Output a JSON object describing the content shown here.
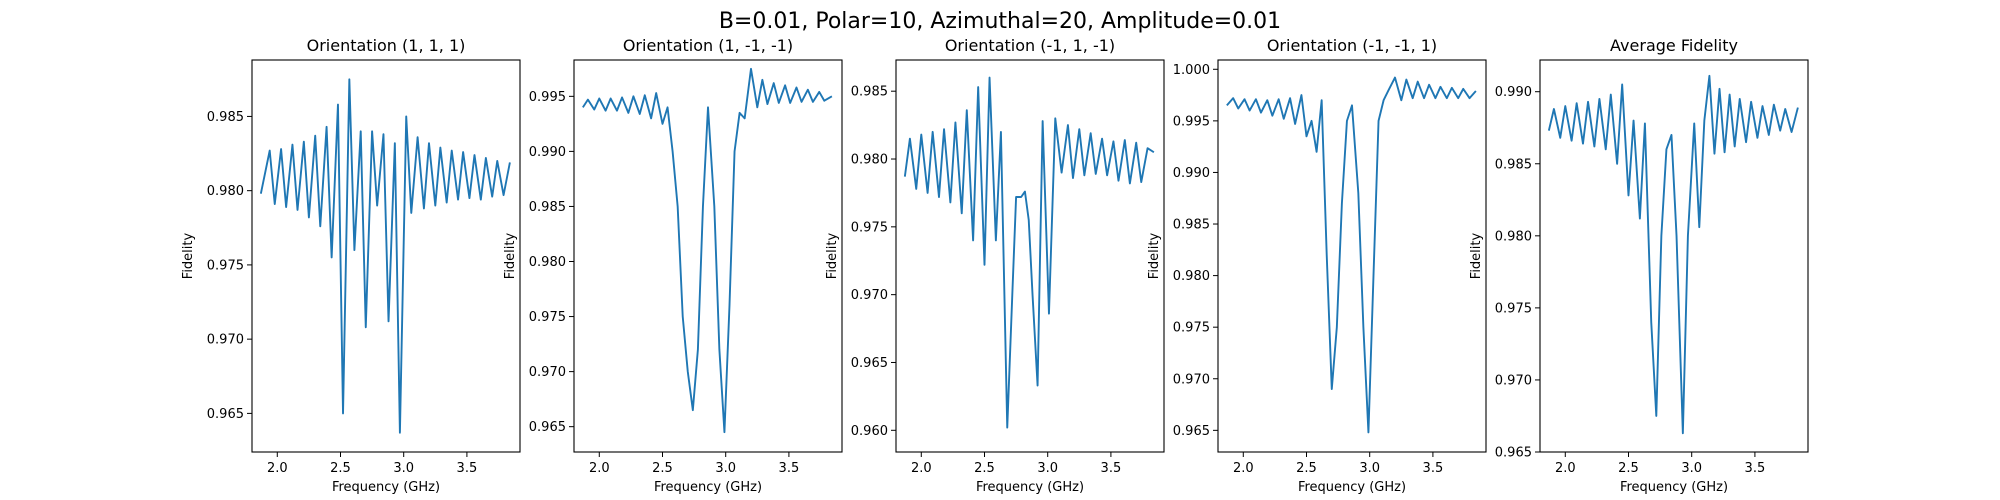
{
  "suptitle": "B=0.01, Polar=10, Azimuthal=20, Amplitude=0.01",
  "line_color": "#1f77b4",
  "chart_data": [
    {
      "type": "line",
      "title": "Orientation (1, 1, 1)",
      "xlabel": "Frequency (GHz)",
      "ylabel": "Fidelity",
      "xlim": [
        1.8,
        3.92
      ],
      "ylim": [
        0.9624,
        0.9888
      ],
      "xticks": [
        2.0,
        2.5,
        3.0,
        3.5
      ],
      "xtick_labels": [
        "2.0",
        "2.5",
        "3.0",
        "3.5"
      ],
      "yticks": [
        0.965,
        0.97,
        0.975,
        0.98,
        0.985
      ],
      "ytick_labels": [
        "0.965",
        "0.970",
        "0.975",
        "0.980",
        "0.985"
      ],
      "grid": false,
      "legend": "none",
      "series": [
        {
          "x": [
            1.87,
            1.94,
            1.98,
            2.03,
            2.07,
            2.12,
            2.16,
            2.21,
            2.25,
            2.3,
            2.34,
            2.39,
            2.43,
            2.48,
            2.52,
            2.57,
            2.61,
            2.66,
            2.7,
            2.75,
            2.79,
            2.84,
            2.88,
            2.93,
            2.97,
            3.02,
            3.06,
            3.11,
            3.16,
            3.2,
            3.25,
            3.29,
            3.34,
            3.38,
            3.43,
            3.47,
            3.52,
            3.56,
            3.61,
            3.65,
            3.7,
            3.74,
            3.79,
            3.84
          ],
          "y": [
            0.9798,
            0.9827,
            0.9791,
            0.9828,
            0.9789,
            0.9831,
            0.9787,
            0.9833,
            0.9782,
            0.9837,
            0.9776,
            0.9843,
            0.9755,
            0.9858,
            0.965,
            0.9875,
            0.976,
            0.984,
            0.9708,
            0.984,
            0.979,
            0.9838,
            0.9712,
            0.9832,
            0.9637,
            0.985,
            0.9785,
            0.9836,
            0.9788,
            0.9832,
            0.979,
            0.9829,
            0.9792,
            0.9827,
            0.9794,
            0.9826,
            0.9795,
            0.9824,
            0.9794,
            0.9822,
            0.9796,
            0.982,
            0.9797,
            0.9819
          ]
        }
      ]
    },
    {
      "type": "line",
      "title": "Orientation (1, -1, -1)",
      "xlabel": "Frequency (GHz)",
      "ylabel": "Fidelity",
      "xlim": [
        1.8,
        3.92
      ],
      "ylim": [
        0.9627,
        0.9983
      ],
      "xticks": [
        2.0,
        2.5,
        3.0,
        3.5
      ],
      "xtick_labels": [
        "2.0",
        "2.5",
        "3.0",
        "3.5"
      ],
      "yticks": [
        0.965,
        0.97,
        0.975,
        0.98,
        0.985,
        0.99,
        0.995
      ],
      "ytick_labels": [
        "0.965",
        "0.970",
        "0.975",
        "0.980",
        "0.985",
        "0.990",
        "0.995"
      ],
      "grid": false,
      "legend": "none",
      "series": [
        {
          "x": [
            1.87,
            1.91,
            1.96,
            2.0,
            2.05,
            2.09,
            2.14,
            2.18,
            2.23,
            2.27,
            2.32,
            2.36,
            2.41,
            2.45,
            2.5,
            2.54,
            2.58,
            2.62,
            2.66,
            2.7,
            2.74,
            2.78,
            2.82,
            2.86,
            2.91,
            2.95,
            2.99,
            3.03,
            3.07,
            3.11,
            3.15,
            3.2,
            3.25,
            3.29,
            3.33,
            3.38,
            3.42,
            3.47,
            3.51,
            3.56,
            3.6,
            3.65,
            3.69,
            3.74,
            3.78,
            3.84
          ],
          "y": [
            0.994,
            0.9947,
            0.9938,
            0.9948,
            0.9937,
            0.9948,
            0.9937,
            0.9949,
            0.9935,
            0.995,
            0.9934,
            0.9951,
            0.993,
            0.9953,
            0.9925,
            0.994,
            0.99,
            0.985,
            0.975,
            0.97,
            0.9665,
            0.972,
            0.985,
            0.994,
            0.985,
            0.972,
            0.9645,
            0.976,
            0.99,
            0.9935,
            0.993,
            0.9975,
            0.994,
            0.9965,
            0.9943,
            0.9962,
            0.9944,
            0.996,
            0.9944,
            0.9958,
            0.9945,
            0.9956,
            0.9945,
            0.9954,
            0.9946,
            0.995
          ]
        }
      ]
    },
    {
      "type": "line",
      "title": "Orientation (-1, 1, -1)",
      "xlabel": "Frequency (GHz)",
      "ylabel": "Fidelity",
      "xlim": [
        1.8,
        3.92
      ],
      "ylim": [
        0.9584,
        0.9873
      ],
      "xticks": [
        2.0,
        2.5,
        3.0,
        3.5
      ],
      "xtick_labels": [
        "2.0",
        "2.5",
        "3.0",
        "3.5"
      ],
      "yticks": [
        0.96,
        0.965,
        0.97,
        0.975,
        0.98,
        0.985
      ],
      "ytick_labels": [
        "0.960",
        "0.965",
        "0.970",
        "0.975",
        "0.980",
        "0.985"
      ],
      "grid": false,
      "legend": "none",
      "series": [
        {
          "x": [
            1.87,
            1.91,
            1.96,
            2.0,
            2.05,
            2.09,
            2.14,
            2.18,
            2.23,
            2.27,
            2.32,
            2.36,
            2.41,
            2.45,
            2.5,
            2.54,
            2.59,
            2.63,
            2.68,
            2.72,
            2.75,
            2.79,
            2.82,
            2.85,
            2.88,
            2.92,
            2.96,
            3.01,
            3.06,
            3.11,
            3.16,
            3.2,
            3.25,
            3.29,
            3.34,
            3.38,
            3.43,
            3.47,
            3.52,
            3.56,
            3.61,
            3.65,
            3.7,
            3.74,
            3.79,
            3.84
          ],
          "y": [
            0.9787,
            0.9815,
            0.9778,
            0.9818,
            0.9775,
            0.982,
            0.9772,
            0.9822,
            0.9768,
            0.9827,
            0.976,
            0.9836,
            0.974,
            0.9853,
            0.9722,
            0.986,
            0.974,
            0.982,
            0.9602,
            0.97,
            0.9772,
            0.9772,
            0.9776,
            0.9755,
            0.97,
            0.9633,
            0.9828,
            0.9686,
            0.983,
            0.979,
            0.9825,
            0.9786,
            0.9822,
            0.9788,
            0.9819,
            0.9789,
            0.9815,
            0.9788,
            0.9813,
            0.9784,
            0.9814,
            0.9782,
            0.9812,
            0.9783,
            0.9808,
            0.9805
          ]
        }
      ]
    },
    {
      "type": "line",
      "title": "Orientation (-1, -1, 1)",
      "xlabel": "Frequency (GHz)",
      "ylabel": "Fidelity",
      "xlim": [
        1.8,
        3.92
      ],
      "ylim": [
        0.9629,
        1.0009
      ],
      "xticks": [
        2.0,
        2.5,
        3.0,
        3.5
      ],
      "xtick_labels": [
        "2.0",
        "2.5",
        "3.0",
        "3.5"
      ],
      "yticks": [
        0.965,
        0.97,
        0.975,
        0.98,
        0.985,
        0.99,
        0.995,
        1.0
      ],
      "ytick_labels": [
        "0.965",
        "0.970",
        "0.975",
        "0.980",
        "0.985",
        "0.990",
        "0.995",
        "1.000"
      ],
      "grid": false,
      "legend": "none",
      "series": [
        {
          "x": [
            1.87,
            1.92,
            1.96,
            2.01,
            2.05,
            2.1,
            2.14,
            2.19,
            2.23,
            2.28,
            2.32,
            2.37,
            2.41,
            2.46,
            2.5,
            2.54,
            2.58,
            2.62,
            2.66,
            2.7,
            2.74,
            2.78,
            2.82,
            2.86,
            2.91,
            2.95,
            2.99,
            3.03,
            3.07,
            3.11,
            3.15,
            3.2,
            3.25,
            3.29,
            3.34,
            3.38,
            3.43,
            3.47,
            3.52,
            3.56,
            3.61,
            3.65,
            3.7,
            3.74,
            3.79,
            3.84
          ],
          "y": [
            0.9965,
            0.9972,
            0.9962,
            0.9971,
            0.996,
            0.9971,
            0.9958,
            0.997,
            0.9955,
            0.9971,
            0.9952,
            0.9972,
            0.9947,
            0.9975,
            0.9935,
            0.995,
            0.992,
            0.997,
            0.982,
            0.969,
            0.975,
            0.987,
            0.995,
            0.9965,
            0.988,
            0.975,
            0.9648,
            0.98,
            0.995,
            0.997,
            0.998,
            0.9992,
            0.997,
            0.999,
            0.9972,
            0.9988,
            0.9972,
            0.9985,
            0.9972,
            0.9983,
            0.9972,
            0.9982,
            0.9972,
            0.9981,
            0.9972,
            0.9979
          ]
        }
      ]
    },
    {
      "type": "line",
      "title": "Average Fidelity",
      "xlabel": "Frequency (GHz)",
      "ylabel": "Fidelity",
      "xlim": [
        1.8,
        3.92
      ],
      "ylim": [
        0.965,
        0.9922
      ],
      "xticks": [
        2.0,
        2.5,
        3.0,
        3.5
      ],
      "xtick_labels": [
        "2.0",
        "2.5",
        "3.0",
        "3.5"
      ],
      "yticks": [
        0.965,
        0.97,
        0.975,
        0.98,
        0.985,
        0.99
      ],
      "ytick_labels": [
        "0.965",
        "0.970",
        "0.975",
        "0.980",
        "0.985",
        "0.990"
      ],
      "grid": false,
      "legend": "none",
      "series": [
        {
          "x": [
            1.87,
            1.91,
            1.96,
            2.0,
            2.05,
            2.09,
            2.14,
            2.18,
            2.23,
            2.27,
            2.32,
            2.36,
            2.41,
            2.45,
            2.5,
            2.54,
            2.59,
            2.63,
            2.68,
            2.72,
            2.76,
            2.8,
            2.84,
            2.88,
            2.93,
            2.97,
            3.02,
            3.06,
            3.1,
            3.14,
            3.18,
            3.22,
            3.26,
            3.3,
            3.34,
            3.38,
            3.43,
            3.47,
            3.52,
            3.56,
            3.61,
            3.65,
            3.7,
            3.74,
            3.79,
            3.84
          ],
          "y": [
            0.9873,
            0.9888,
            0.9868,
            0.989,
            0.9866,
            0.9892,
            0.9864,
            0.9893,
            0.9862,
            0.9895,
            0.986,
            0.9898,
            0.985,
            0.9905,
            0.9828,
            0.988,
            0.9812,
            0.9878,
            0.974,
            0.9675,
            0.98,
            0.986,
            0.987,
            0.98,
            0.9663,
            0.98,
            0.9878,
            0.9806,
            0.988,
            0.9911,
            0.9857,
            0.9902,
            0.9858,
            0.9898,
            0.9862,
            0.9895,
            0.9865,
            0.9893,
            0.9868,
            0.989,
            0.987,
            0.9891,
            0.9873,
            0.9888,
            0.9872,
            0.9889
          ]
        }
      ]
    }
  ]
}
